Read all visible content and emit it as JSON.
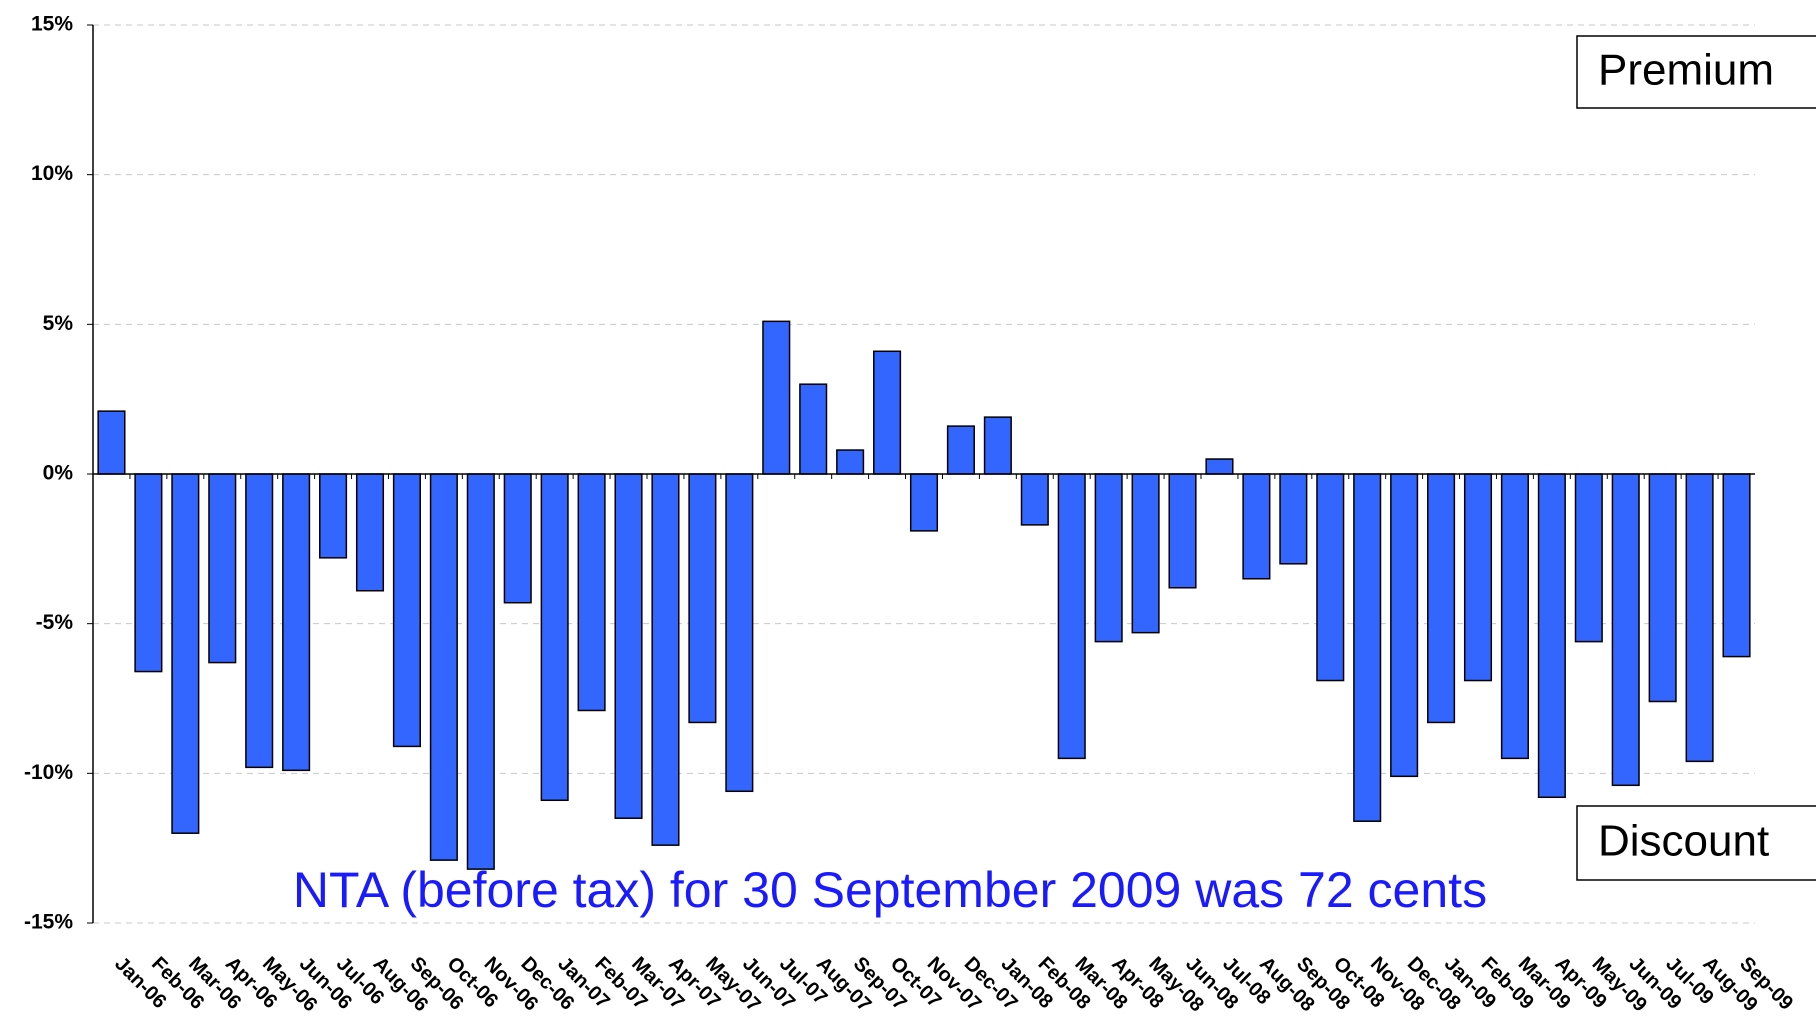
{
  "chart_data": {
    "type": "bar",
    "categories": [
      "Jan-06",
      "Feb-06",
      "Mar-06",
      "Apr-06",
      "May-06",
      "Jun-06",
      "Jul-06",
      "Aug-06",
      "Sep-06",
      "Oct-06",
      "Nov-06",
      "Dec-06",
      "Jan-07",
      "Feb-07",
      "Mar-07",
      "Apr-07",
      "May-07",
      "Jun-07",
      "Jul-07",
      "Aug-07",
      "Sep-07",
      "Oct-07",
      "Nov-07",
      "Dec-07",
      "Jan-08",
      "Feb-08",
      "Mar-08",
      "Apr-08",
      "May-08",
      "Jun-08",
      "Jul-08",
      "Aug-08",
      "Sep-08",
      "Oct-08",
      "Nov-08",
      "Dec-08",
      "Jan-09",
      "Feb-09",
      "Mar-09",
      "Apr-09",
      "May-09",
      "Jun-09",
      "Jul-09",
      "Aug-09",
      "Sep-09"
    ],
    "values": [
      2.1,
      -6.6,
      -12.0,
      -6.3,
      -9.8,
      -9.9,
      -2.8,
      -3.9,
      -9.1,
      -12.9,
      -13.2,
      -4.3,
      -10.9,
      -7.9,
      -11.5,
      -12.4,
      -8.3,
      -10.6,
      5.1,
      3.0,
      0.8,
      4.1,
      -1.9,
      1.6,
      1.9,
      -1.7,
      -9.5,
      -5.6,
      -5.3,
      -3.8,
      0.5,
      -3.5,
      -3.0,
      -6.9,
      -11.6,
      -10.1,
      -8.3,
      -6.9,
      -9.5,
      -10.8,
      -5.6,
      -10.4,
      -7.6,
      -9.6,
      -6.1
    ],
    "color": "#3366ff",
    "ylim": [
      -15,
      15
    ],
    "yticks": [
      {
        "value": -15,
        "label": "-15%"
      },
      {
        "value": -10,
        "label": "-10%"
      },
      {
        "value": -5,
        "label": "-5%"
      },
      {
        "value": 0,
        "label": "0%"
      },
      {
        "value": 5,
        "label": "5%"
      },
      {
        "value": 10,
        "label": "10%"
      },
      {
        "value": 15,
        "label": "15%"
      }
    ],
    "grid": true,
    "annotations": [
      "Premium",
      "Discount",
      "NTA (before tax) for 30 September 2009 was 72 cents"
    ]
  }
}
